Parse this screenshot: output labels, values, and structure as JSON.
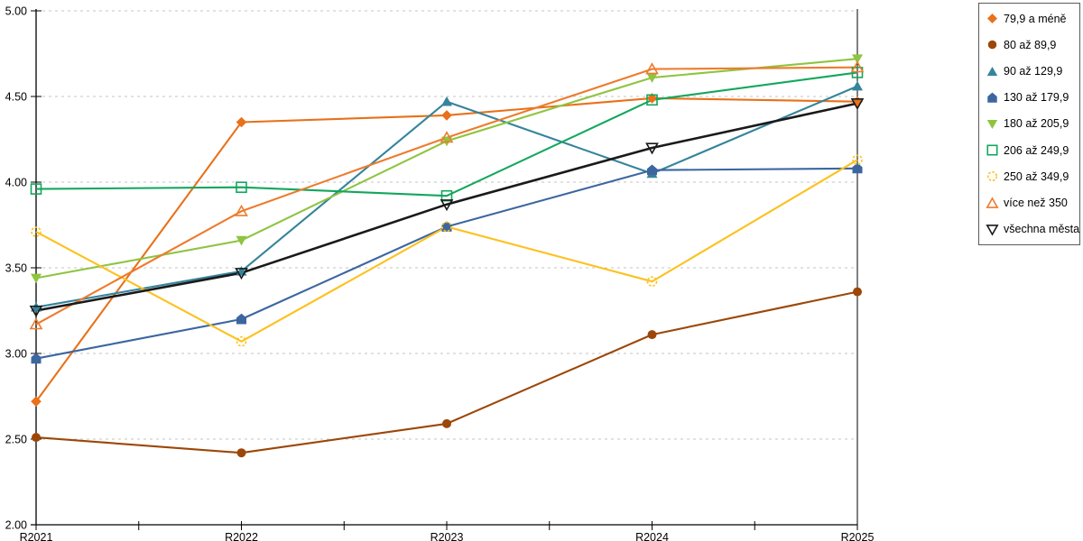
{
  "chart_data": {
    "type": "line",
    "x": [
      "R2021",
      "R2022",
      "R2023",
      "R2024",
      "R2025"
    ],
    "series": [
      {
        "name": "79,9 a méně",
        "color": "#E8711A",
        "marker": "diamond",
        "marker_style": "filled",
        "values": [
          2.72,
          4.35,
          4.39,
          4.49,
          4.47
        ]
      },
      {
        "name": "80 až 89,9",
        "color": "#9C4708",
        "marker": "circle",
        "marker_style": "filled",
        "values": [
          2.51,
          2.42,
          2.59,
          3.11,
          3.36
        ]
      },
      {
        "name": "90 až 129,9",
        "color": "#35849B",
        "marker": "triangle-up",
        "marker_style": "filled",
        "values": [
          3.27,
          3.48,
          4.47,
          4.05,
          4.56
        ]
      },
      {
        "name": "130 až 179,9",
        "color": "#3C66A0",
        "marker": "pentagon",
        "marker_style": "filled",
        "values": [
          2.97,
          3.2,
          3.74,
          4.07,
          4.08
        ]
      },
      {
        "name": "180 až 205,9",
        "color": "#8EC440",
        "marker": "triangle-down",
        "marker_style": "filled",
        "values": [
          3.44,
          3.66,
          4.24,
          4.61,
          4.72
        ]
      },
      {
        "name": "206 až 249,9",
        "color": "#12A75C",
        "marker": "square",
        "marker_style": "open",
        "values": [
          3.96,
          3.97,
          3.92,
          4.48,
          4.64
        ]
      },
      {
        "name": "250 až 349,9",
        "color": "#FDC11E",
        "marker": "circle",
        "marker_style": "open-dashed",
        "values": [
          3.71,
          3.07,
          3.74,
          3.42,
          4.13
        ]
      },
      {
        "name": "více než 350",
        "color": "#EE7B2D",
        "marker": "triangle-up",
        "marker_style": "open",
        "values": [
          3.17,
          3.83,
          4.26,
          4.66,
          4.67
        ]
      },
      {
        "name": "všechna města",
        "color": "#1A1A1A",
        "marker": "triangle-down",
        "marker_style": "open",
        "values": [
          3.25,
          3.47,
          3.87,
          4.2,
          4.46
        ],
        "thick": true
      }
    ],
    "ylim": [
      2.0,
      5.0
    ],
    "yticks": [
      {
        "v": 2.0,
        "label": "2.00"
      },
      {
        "v": 2.5,
        "label": "2.50"
      },
      {
        "v": 3.0,
        "label": "3.00"
      },
      {
        "v": 3.5,
        "label": "3.50"
      },
      {
        "v": 4.0,
        "label": "4.00"
      },
      {
        "v": 4.5,
        "label": "4.50"
      },
      {
        "v": 5.0,
        "label": "5.00"
      }
    ],
    "grid": "horizontal-dashed",
    "grid_color": "#C6C6C6",
    "axis_color": "#000000",
    "legend_position": "top-right",
    "title": "",
    "xlabel": "",
    "ylabel": ""
  }
}
